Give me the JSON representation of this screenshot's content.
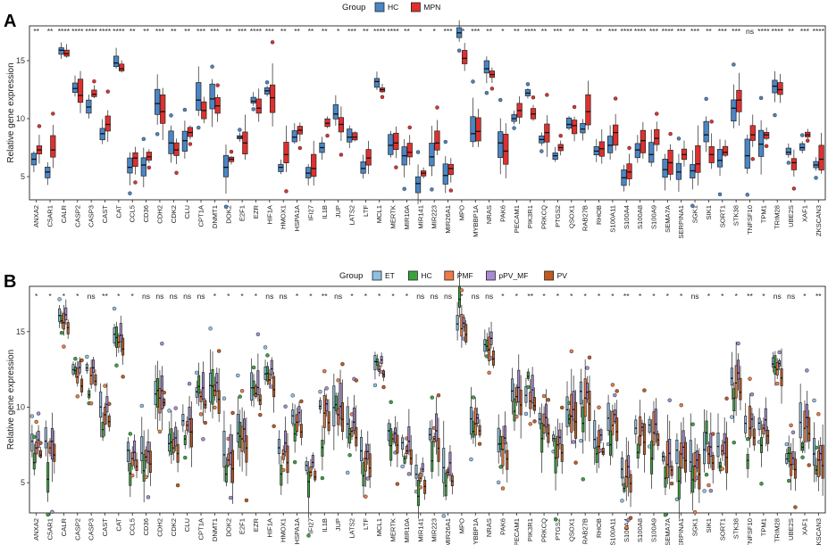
{
  "chart_data": [
    {
      "panel": "A",
      "type": "boxplot",
      "ylabel": "Relative gene expression",
      "legend_title": "Group",
      "legend_position": "top",
      "groups": [
        {
          "name": "HC",
          "color": "#4a86c5"
        },
        {
          "name": "MPN",
          "color": "#e0302e"
        }
      ],
      "yticks": [
        5,
        10,
        15
      ],
      "ylim": [
        3,
        18
      ],
      "grid": false,
      "categories": [
        "ANXA2",
        "C5AR1",
        "CALR",
        "CASP2",
        "CASP3",
        "CAST",
        "CAT",
        "CCL5",
        "CD36",
        "CDH2",
        "CDK2",
        "CLU",
        "CPT1A",
        "DNMT1",
        "DOK2",
        "E2F1",
        "EZR",
        "HIF1A",
        "HMOX1",
        "HSPA1A",
        "IFI27",
        "IL1B",
        "JUP",
        "LATS2",
        "LTF",
        "MCL1",
        "MERTK",
        "MIR10A",
        "MIR141",
        "MIR223",
        "MIR26A1",
        "MPO",
        "MYBBP1A",
        "NRAS",
        "PAK6",
        "PECAM1",
        "PIK3R1",
        "PRKCQ",
        "PTGS2",
        "QSOX1",
        "RAB27B",
        "RHOB",
        "S100A11",
        "S100A4",
        "S100A8",
        "S100A9",
        "SEMA7A",
        "SERPINA1",
        "SGK1",
        "SIK1",
        "SORT1",
        "STK38",
        "TNFSF10",
        "TPM1",
        "TRIM28",
        "UBE2S",
        "XAF1",
        "ZKSCAN3"
      ],
      "significance": [
        "**",
        "**",
        "****",
        "****",
        "****",
        "****",
        "****",
        "**",
        "**",
        "***",
        "**",
        "**",
        "***",
        "***",
        "**",
        "***",
        "****",
        "***",
        "**",
        "**",
        "**",
        "**",
        "*",
        "***",
        "**",
        "****",
        "****",
        "**",
        "*",
        "*",
        "***",
        "**",
        "***",
        "**",
        "*",
        "**",
        "****",
        "**",
        "***",
        "**",
        "**",
        "**",
        "***",
        "****",
        "****",
        "***",
        "****",
        "***",
        "***",
        "**",
        "***",
        "***",
        "ns",
        "****",
        "****",
        "**",
        "***",
        "****"
      ],
      "series": [
        {
          "name": "HC",
          "medians": [
            6.5,
            5.4,
            15.9,
            12.6,
            11.0,
            8.7,
            14.8,
            5.8,
            6.0,
            11.3,
            7.9,
            8.1,
            11.6,
            11.7,
            5.8,
            8.4,
            11.5,
            12.4,
            5.8,
            8.4,
            5.3,
            7.5,
            10.4,
            8.4,
            5.7,
            13.2,
            7.7,
            6.8,
            4.4,
            6.7,
            5.1,
            17.4,
            8.7,
            14.3,
            7.9,
            10.0,
            12.2,
            8.2,
            6.8,
            9.5,
            9.1,
            7.2,
            7.7,
            4.9,
            7.3,
            6.9,
            5.6,
            5.4,
            5.5,
            8.6,
            6.4,
            10.9,
            6.8,
            7.8,
            12.8,
            7.1,
            7.5,
            6.0
          ]
        },
        {
          "name": "MPN",
          "medians": [
            7.3,
            7.3,
            15.6,
            12.0,
            12.1,
            9.5,
            14.3,
            6.6,
            6.7,
            10.6,
            7.3,
            8.8,
            10.7,
            11.1,
            6.5,
            7.9,
            10.9,
            11.8,
            6.9,
            9.0,
            5.7,
            9.6,
            9.5,
            8.4,
            6.6,
            12.5,
            7.9,
            7.1,
            5.3,
            7.9,
            5.7,
            15.2,
            8.9,
            13.8,
            7.2,
            10.7,
            10.4,
            8.8,
            7.5,
            9.4,
            10.6,
            7.4,
            8.8,
            5.4,
            8.1,
            8.3,
            6.2,
            6.9,
            6.1,
            6.9,
            7.1,
            11.6,
            8.6,
            8.6,
            12.5,
            6.2,
            8.6,
            6.5
          ]
        }
      ]
    },
    {
      "panel": "B",
      "type": "boxplot",
      "ylabel": "Relative gene expression",
      "legend_title": "Group",
      "legend_position": "top",
      "groups": [
        {
          "name": "ET",
          "color": "#8fc0e3"
        },
        {
          "name": "HC",
          "color": "#3aa43c"
        },
        {
          "name": "PMF",
          "color": "#f07a45"
        },
        {
          "name": "pPV_MF",
          "color": "#a98bd3"
        },
        {
          "name": "PV",
          "color": "#c05a20"
        }
      ],
      "yticks": [
        5,
        10,
        15
      ],
      "ylim": [
        3,
        18
      ],
      "grid": false,
      "categories": [
        "ANXA2",
        "C5AR1",
        "CALR",
        "CASP2",
        "CASP3",
        "CAST",
        "CAT",
        "CCL5",
        "CD36",
        "CDH2",
        "CDK2",
        "CLU",
        "CPT1A",
        "DNMT1",
        "DOK2",
        "E2F1",
        "EZR",
        "HIF1A",
        "HMOX1",
        "HSPA1A",
        "IFI27",
        "IL1B",
        "JUP",
        "LATS2",
        "LTF",
        "MCL1",
        "MERTK",
        "MIR10A",
        "MIR141",
        "MIR223",
        "MIR26A1",
        "MPO",
        "MYBBP1A",
        "NRAS",
        "PAK6",
        "PECAM1",
        "PIK3R1",
        "PRKCQ",
        "PTGS2",
        "QSOX1",
        "RAB27B",
        "RHOB",
        "S100A11",
        "S100A4",
        "S100A8",
        "S100A9",
        "SEMA7A",
        "SERPINA1",
        "SGK1",
        "SIK1",
        "SORT1",
        "STK38",
        "TNFSF10",
        "TPM1",
        "TRIM28",
        "UBE2S",
        "XAF1",
        "ZKSCAN3"
      ],
      "significance": [
        "*",
        "*",
        "*",
        "*",
        "ns",
        "**",
        "*",
        "*",
        "ns",
        "ns",
        "ns",
        "ns",
        "ns",
        "*",
        "*",
        "*",
        "*",
        "ns",
        "ns",
        "*",
        "*",
        "**",
        "ns",
        "*",
        "*",
        "*",
        "*",
        "*",
        "ns",
        "ns",
        "ns",
        "*",
        "ns",
        "ns",
        "*",
        "*",
        "**",
        "*",
        "*",
        "*",
        "*",
        "*",
        "*",
        "**",
        "*",
        "*",
        "*",
        "*",
        "ns",
        "*",
        "*",
        "*",
        "**",
        "*",
        "ns",
        "ns",
        "*",
        "**"
      ]
    }
  ]
}
